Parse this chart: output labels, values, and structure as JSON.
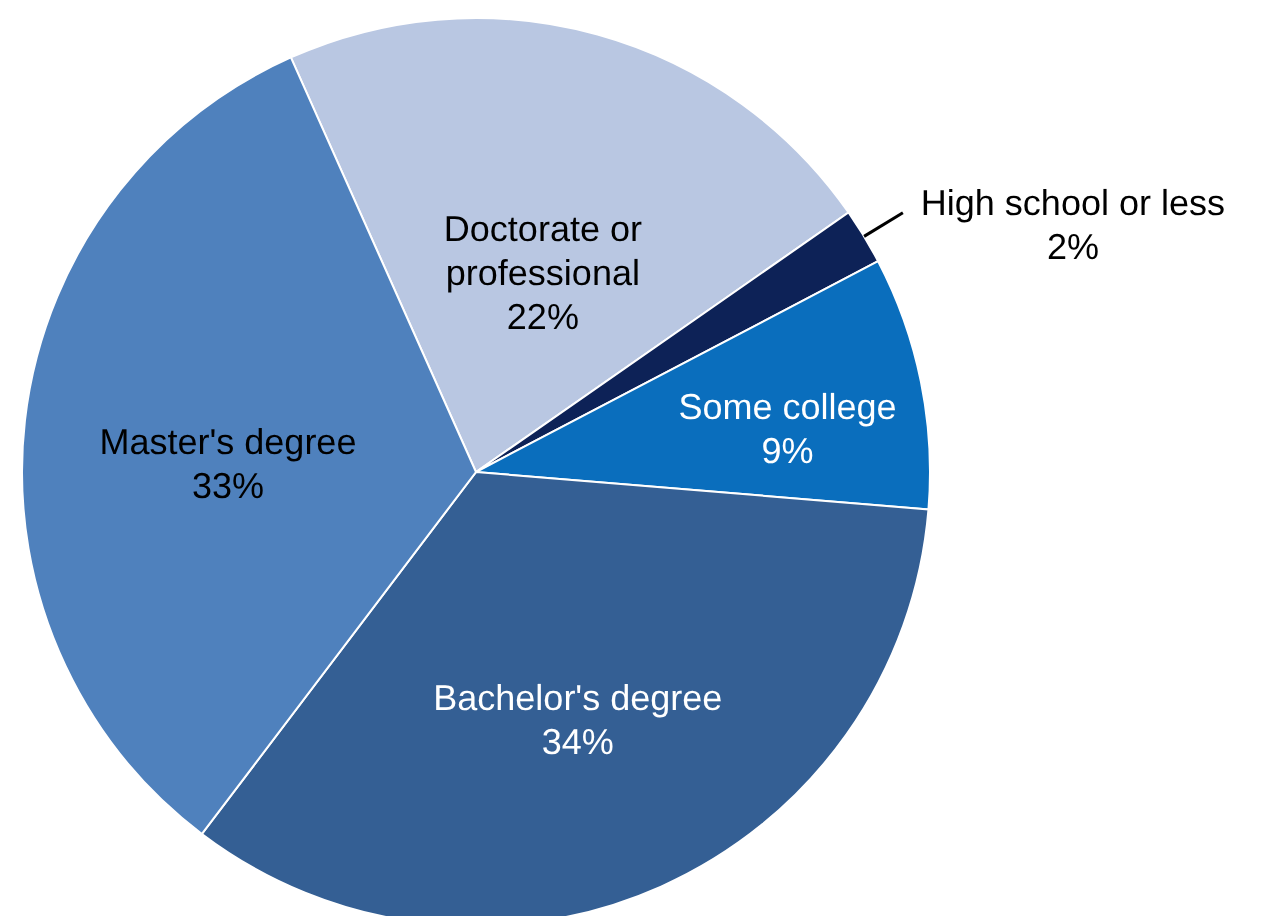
{
  "chart_data": {
    "type": "pie",
    "categories": [
      "Doctorate or professional",
      "High school or less",
      "Some college",
      "Bachelor's degree",
      "Master's degree"
    ],
    "values": [
      22,
      2,
      9,
      34,
      33
    ],
    "colors": [
      "#b9c7e2",
      "#0d2257",
      "#0a6ebd",
      "#345f94",
      "#4f81bd"
    ],
    "value_labels": [
      "22%",
      "2%",
      "9%",
      "34%",
      "33%"
    ]
  }
}
